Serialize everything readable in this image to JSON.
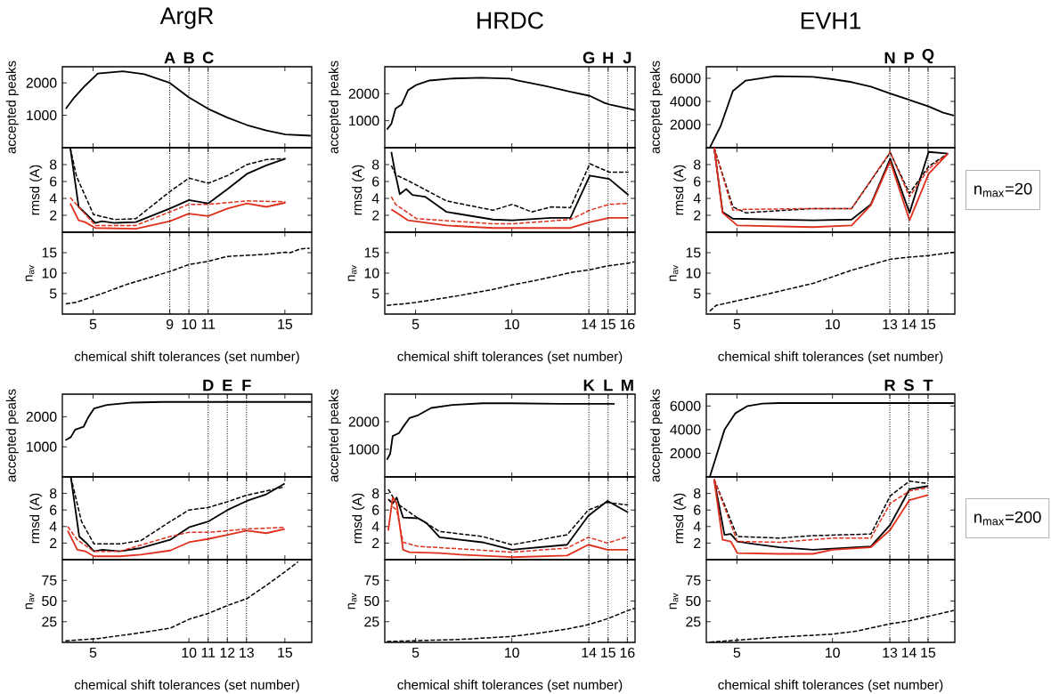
{
  "chart_data": [
    {
      "type": "line",
      "title": "ArgR",
      "ylabel": "accepted peaks",
      "xlim": [
        3.4,
        16.4
      ],
      "ylim": [
        0,
        2500
      ],
      "xticks": [
        5,
        9,
        10,
        11,
        15
      ],
      "yticks": [
        1000,
        2000
      ],
      "tick_labels": "y",
      "ref_lines": [
        {
          "axis": "x",
          "value": 9,
          "label": "A",
          "line_style": "dotted"
        },
        {
          "axis": "x",
          "value": 10,
          "label": "B",
          "line_style": "dotted"
        },
        {
          "axis": "x",
          "value": 11,
          "label": "C",
          "line_style": "dotted"
        }
      ],
      "series": [
        {
          "color": "#000000",
          "line_style": "solid",
          "x": [
            3.58,
            4.02,
            4.58,
            5.25,
            6.56,
            7.67,
            9,
            10,
            11,
            12,
            13.02,
            14.03,
            15.03,
            16.35
          ],
          "values": [
            1200,
            1550,
            1910,
            2290,
            2360,
            2270,
            2000,
            1550,
            1200,
            930,
            700,
            530,
            410,
            370
          ]
        }
      ]
    },
    {
      "type": "line",
      "ylabel": "rmsd (A)",
      "xlim": [
        3.4,
        16.4
      ],
      "ylim": [
        0,
        10
      ],
      "xticks": [
        5,
        9,
        10,
        11,
        15
      ],
      "yticks": [
        2,
        4,
        6,
        8
      ],
      "tick_labels": "y",
      "ref_lines": [
        {
          "axis": "x",
          "value": 9,
          "line_style": "dotted"
        },
        {
          "axis": "x",
          "value": 10,
          "line_style": "dotted"
        },
        {
          "axis": "x",
          "value": 11,
          "line_style": "dotted"
        }
      ],
      "series": [
        {
          "color": "#000000",
          "line_style": "solid",
          "x": [
            3.81,
            4.25,
            4.58,
            5.12,
            5.46,
            6.12,
            7.23,
            9,
            10,
            11,
            12.01,
            13.02,
            14.03,
            15.03
          ],
          "values": [
            10,
            3.0,
            2.3,
            1.1,
            1.3,
            1.1,
            1.2,
            2.8,
            3.8,
            3.4,
            5.1,
            6.9,
            7.9,
            8.7
          ]
        },
        {
          "color": "#000000",
          "line_style": "dashed",
          "x": [
            3.81,
            4.14,
            5.02,
            6.12,
            7.23,
            9,
            10,
            11.01,
            12.01,
            13.02,
            14.03,
            15.03
          ],
          "values": [
            10,
            6.6,
            2.1,
            1.5,
            1.6,
            4.8,
            6.4,
            5.8,
            6.7,
            8.0,
            8.6,
            8.7
          ]
        },
        {
          "color": "#e0301e",
          "line_style": "solid",
          "x": [
            3.81,
            4.25,
            4.58,
            5.12,
            7.23,
            9,
            10,
            11,
            12.01,
            13.02,
            14.03,
            15.03
          ],
          "values": [
            3.4,
            1.4,
            1.2,
            0.5,
            0.4,
            1.3,
            2.2,
            1.9,
            2.8,
            3.4,
            3.0,
            3.5
          ]
        },
        {
          "color": "#e0301e",
          "line_style": "dashed",
          "x": [
            3.81,
            4.25,
            5.12,
            7.23,
            9,
            10,
            11,
            13.02,
            15.03
          ],
          "values": [
            4.1,
            3.0,
            0.8,
            0.8,
            2.4,
            3.3,
            3.3,
            3.7,
            3.6
          ]
        }
      ]
    },
    {
      "type": "line",
      "ylabel": "n$_{av}$",
      "xlabel": "chemical shift tolerances (set number)",
      "xlim": [
        3.4,
        16.4
      ],
      "ylim": [
        0,
        20
      ],
      "xticks": [
        5,
        9,
        10,
        11,
        15
      ],
      "yticks": [
        5,
        10,
        15
      ],
      "ref_lines": [
        {
          "axis": "x",
          "value": 9,
          "line_style": "dotted"
        },
        {
          "axis": "x",
          "value": 10,
          "line_style": "dotted"
        },
        {
          "axis": "x",
          "value": 11,
          "line_style": "dotted"
        }
      ],
      "series": [
        {
          "color": "#000000",
          "line_style": "dashed",
          "x": [
            3.58,
            4.14,
            5.46,
            6.79,
            9,
            10,
            11.01,
            12.01,
            14.03,
            15.03,
            15.28,
            15.79,
            16.29
          ],
          "values": [
            2.5,
            2.9,
            5.0,
            7.3,
            10.4,
            12.1,
            12.9,
            14.1,
            14.6,
            15.1,
            15.0,
            15.9,
            16.1
          ]
        }
      ]
    },
    {
      "type": "line",
      "title": "HRDC",
      "ylabel": "accepted peaks",
      "xlim": [
        3.4,
        16.4
      ],
      "ylim": [
        0,
        3000
      ],
      "xticks": [
        5,
        10,
        14,
        15,
        16
      ],
      "yticks": [
        1000,
        2000
      ],
      "tick_labels": "y",
      "ref_lines": [
        {
          "axis": "x",
          "value": 14,
          "label": "G",
          "line_style": "dotted"
        },
        {
          "axis": "x",
          "value": 15,
          "label": "H",
          "line_style": "dotted"
        },
        {
          "axis": "x",
          "value": 16,
          "label": "J",
          "line_style": "dotted"
        }
      ],
      "series": [
        {
          "color": "#000000",
          "line_style": "solid",
          "x": [
            3.51,
            3.74,
            3.96,
            4.28,
            4.61,
            5.05,
            5.72,
            6.82,
            8.37,
            9.9,
            10.28,
            11.79,
            13.04,
            14.05,
            14.81,
            15.06,
            16.38
          ],
          "values": [
            670,
            880,
            1450,
            1600,
            2130,
            2330,
            2490,
            2560,
            2590,
            2560,
            2490,
            2280,
            2070,
            1920,
            1660,
            1600,
            1400
          ]
        }
      ]
    },
    {
      "type": "line",
      "ylabel": "rmsd (A)",
      "xlim": [
        3.4,
        16.4
      ],
      "ylim": [
        0,
        10
      ],
      "xticks": [
        5,
        10,
        14,
        15,
        16
      ],
      "yticks": [
        2,
        4,
        6,
        8
      ],
      "tick_labels": "y",
      "ref_lines": [
        {
          "axis": "x",
          "value": 14,
          "line_style": "dotted"
        },
        {
          "axis": "x",
          "value": 15,
          "line_style": "dotted"
        },
        {
          "axis": "x",
          "value": 16,
          "line_style": "dotted"
        }
      ],
      "series": [
        {
          "color": "#000000",
          "line_style": "solid",
          "x": [
            3.74,
            3.96,
            4.18,
            4.51,
            4.84,
            5.49,
            6.61,
            9.02,
            10.03,
            12.04,
            13.04,
            14.05,
            15.06,
            16.06
          ],
          "values": [
            9.5,
            6.8,
            4.5,
            5.1,
            4.4,
            4.2,
            2.4,
            1.5,
            1.4,
            1.7,
            1.7,
            6.7,
            6.3,
            4.4
          ]
        },
        {
          "color": "#000000",
          "line_style": "dashed",
          "x": [
            3.74,
            3.96,
            4.61,
            6.61,
            9.02,
            10.03,
            11.03,
            12.04,
            13.04,
            14.05,
            15.06,
            16.06
          ],
          "values": [
            7.9,
            6.8,
            6.1,
            3.7,
            2.6,
            3.3,
            2.4,
            3.0,
            2.9,
            8.1,
            7.1,
            7.1
          ]
        },
        {
          "color": "#e0301e",
          "line_style": "solid",
          "x": [
            3.74,
            3.96,
            4.61,
            6.61,
            9.02,
            13.04,
            14.05,
            15.06,
            16.06
          ],
          "values": [
            2.7,
            2.4,
            1.4,
            0.8,
            0.5,
            0.5,
            1.2,
            1.7,
            1.7
          ]
        },
        {
          "color": "#e0301e",
          "line_style": "dashed",
          "x": [
            3.74,
            3.96,
            5.05,
            9.02,
            10.03,
            13.04,
            14.05,
            15.06,
            16.06
          ],
          "values": [
            4.2,
            3.3,
            1.6,
            1.0,
            1.0,
            1.5,
            2.6,
            3.3,
            3.4
          ]
        }
      ]
    },
    {
      "type": "line",
      "ylabel": "n$_{av}$",
      "xlabel": "chemical shift tolerances (set number)",
      "xlim": [
        3.4,
        16.4
      ],
      "ylim": [
        0,
        20
      ],
      "xticks": [
        5,
        10,
        14,
        15,
        16
      ],
      "yticks": [
        5,
        10,
        15
      ],
      "ref_lines": [
        {
          "axis": "x",
          "value": 14,
          "line_style": "dotted"
        },
        {
          "axis": "x",
          "value": 15,
          "line_style": "dotted"
        },
        {
          "axis": "x",
          "value": 16,
          "line_style": "dotted"
        }
      ],
      "series": [
        {
          "color": "#000000",
          "line_style": "dashed",
          "x": [
            3.51,
            4.96,
            7.25,
            9,
            10,
            11,
            12,
            13,
            14,
            15,
            16,
            16.38
          ],
          "values": [
            2.1,
            2.8,
            4.5,
            6.0,
            7.1,
            8.0,
            9.0,
            10.1,
            10.8,
            11.8,
            12.4,
            12.8
          ]
        }
      ]
    },
    {
      "type": "line",
      "title": "EVH1",
      "ylabel": "accepted peaks",
      "xlim": [
        3.4,
        16.4
      ],
      "ylim": [
        0,
        7000
      ],
      "xticks": [
        5,
        10,
        13,
        14,
        15
      ],
      "yticks": [
        2000,
        4000,
        6000
      ],
      "tick_labels": "y",
      "ref_lines": [
        {
          "axis": "x",
          "value": 13,
          "label": "N",
          "line_style": "dotted"
        },
        {
          "axis": "x",
          "value": 14,
          "label": "P",
          "line_style": "dotted"
        },
        {
          "axis": "x",
          "value": 15,
          "label": "Q",
          "line_style": "dotted"
        }
      ],
      "series": [
        {
          "color": "#000000",
          "line_style": "solid",
          "x": [
            3.58,
            4.14,
            4.79,
            5.46,
            7.0,
            8.98,
            10,
            11,
            12.01,
            13.02,
            14.03,
            15.03,
            15.79,
            16.35
          ],
          "values": [
            0,
            1830,
            4900,
            5800,
            6180,
            6130,
            5920,
            5670,
            5280,
            4690,
            4130,
            3570,
            3030,
            2770
          ]
        }
      ]
    },
    {
      "type": "line",
      "ylabel": "rmsd (A)",
      "xlim": [
        3.4,
        16.4
      ],
      "ylim": [
        0,
        10
      ],
      "xticks": [
        5,
        10,
        13,
        14,
        15
      ],
      "yticks": [
        2,
        4,
        6,
        8
      ],
      "tick_labels": "y",
      "annotations": [
        "n$_{max}$=20"
      ],
      "ref_lines": [
        {
          "axis": "x",
          "value": 13,
          "line_style": "dotted"
        },
        {
          "axis": "x",
          "value": 14,
          "line_style": "dotted"
        },
        {
          "axis": "x",
          "value": 15,
          "line_style": "dotted"
        }
      ],
      "series": [
        {
          "color": "#000000",
          "line_style": "solid",
          "x": [
            3.81,
            4.25,
            4.79,
            8.98,
            11,
            12.01,
            13.02,
            14.03,
            15.03,
            16.04
          ],
          "values": [
            10,
            2.4,
            1.6,
            1.4,
            1.5,
            3.3,
            8.7,
            2.3,
            9.5,
            9.3
          ]
        },
        {
          "color": "#000000",
          "line_style": "dashed",
          "x": [
            3.81,
            4.79,
            5.46,
            8.98,
            11,
            13.02,
            14.03,
            15.03,
            16.04
          ],
          "values": [
            10,
            3.0,
            2.3,
            2.8,
            2.8,
            9.4,
            4.6,
            7.8,
            9.3
          ]
        },
        {
          "color": "#e0301e",
          "line_style": "solid",
          "x": [
            3.81,
            4.25,
            5.02,
            8.98,
            11,
            12.01,
            13.02,
            14.03,
            15.03,
            16.04
          ],
          "values": [
            10,
            2.3,
            0.8,
            0.6,
            0.8,
            3.2,
            8.4,
            1.4,
            6.9,
            9.3
          ]
        },
        {
          "color": "#e0301e",
          "line_style": "dashed",
          "x": [
            3.81,
            4.79,
            5.46,
            8.98,
            11,
            13.02,
            14.03,
            15.03,
            16.04
          ],
          "values": [
            10,
            2.6,
            2.7,
            2.8,
            2.8,
            9.5,
            4.2,
            7.5,
            9.3
          ]
        }
      ]
    },
    {
      "type": "line",
      "ylabel": "n$_{av}$",
      "xlabel": "chemical shift tolerances (set number)",
      "xlim": [
        3.4,
        16.4
      ],
      "ylim": [
        0,
        20
      ],
      "xticks": [
        5,
        10,
        13,
        14,
        15
      ],
      "yticks": [
        5,
        10,
        15
      ],
      "ref_lines": [
        {
          "axis": "x",
          "value": 13,
          "line_style": "dotted"
        },
        {
          "axis": "x",
          "value": 14,
          "line_style": "dotted"
        },
        {
          "axis": "x",
          "value": 15,
          "line_style": "dotted"
        }
      ],
      "series": [
        {
          "color": "#000000",
          "line_style": "dashed",
          "x": [
            3.58,
            3.91,
            6.33,
            8.98,
            11,
            13.02,
            14.03,
            15.03,
            16.35
          ],
          "values": [
            0.7,
            2.1,
            4.6,
            7.5,
            10.7,
            13.4,
            13.9,
            14.3,
            15.1
          ]
        }
      ]
    },
    {
      "type": "line",
      "ylabel": "accepted peaks",
      "xlim": [
        3.4,
        16.4
      ],
      "ylim": [
        0,
        2750
      ],
      "xticks": [
        5,
        10,
        11,
        12,
        13,
        15
      ],
      "yticks": [
        1000,
        2000
      ],
      "tick_labels": "y",
      "ref_lines": [
        {
          "axis": "x",
          "value": 11,
          "label": "D",
          "line_style": "dotted"
        },
        {
          "axis": "x",
          "value": 12,
          "label": "E",
          "line_style": "dotted"
        },
        {
          "axis": "x",
          "value": 13,
          "label": "F",
          "line_style": "dotted"
        }
      ],
      "series": [
        {
          "color": "#000000",
          "line_style": "solid",
          "x": [
            3.56,
            3.84,
            4.07,
            4.51,
            4.74,
            5.05,
            5.72,
            7.05,
            8.6,
            16.38
          ],
          "values": [
            1220,
            1320,
            1570,
            1670,
            1970,
            2270,
            2390,
            2470,
            2490,
            2490
          ]
        }
      ]
    },
    {
      "type": "line",
      "ylabel": "rmsd (A)",
      "xlim": [
        3.4,
        16.4
      ],
      "ylim": [
        0,
        10
      ],
      "xticks": [
        5,
        10,
        11,
        12,
        13,
        15
      ],
      "yticks": [
        2,
        4,
        6,
        8
      ],
      "tick_labels": "y",
      "ref_lines": [
        {
          "axis": "x",
          "value": 11,
          "line_style": "dotted"
        },
        {
          "axis": "x",
          "value": 12,
          "line_style": "dotted"
        },
        {
          "axis": "x",
          "value": 13,
          "line_style": "dotted"
        }
      ],
      "series": [
        {
          "color": "#000000",
          "line_style": "solid",
          "x": [
            3.84,
            4.28,
            4.61,
            5.05,
            5.49,
            6.39,
            7.49,
            9.02,
            10,
            11,
            12.01,
            13.02,
            14.03,
            14.99
          ],
          "values": [
            10,
            2.8,
            2.1,
            1.0,
            1.2,
            1.0,
            1.4,
            2.4,
            3.9,
            4.6,
            6.0,
            7.1,
            7.9,
            9.2
          ]
        },
        {
          "color": "#000000",
          "line_style": "dashed",
          "x": [
            3.84,
            4.4,
            5.05,
            6.39,
            7.49,
            9.02,
            10,
            11,
            12.01,
            13.02,
            14.03,
            14.99
          ],
          "values": [
            10,
            4.6,
            1.9,
            1.9,
            2.3,
            4.6,
            6.0,
            6.3,
            7.0,
            7.8,
            8.3,
            8.8
          ]
        },
        {
          "color": "#e0301e",
          "line_style": "solid",
          "x": [
            3.68,
            4.18,
            4.61,
            5.05,
            6.39,
            7.49,
            9.02,
            10,
            11,
            12.01,
            13.02,
            14.03,
            14.99
          ],
          "values": [
            3.5,
            1.2,
            1.0,
            0.4,
            0.4,
            0.6,
            1.1,
            2.1,
            2.5,
            3.0,
            3.5,
            3.2,
            3.7
          ]
        },
        {
          "color": "#e0301e",
          "line_style": "dashed",
          "x": [
            3.68,
            4.18,
            5.05,
            6.39,
            9.02,
            10,
            11,
            13.02,
            14.99
          ],
          "values": [
            4.0,
            2.4,
            1.0,
            1.0,
            2.8,
            3.3,
            3.3,
            3.7,
            3.9
          ]
        }
      ]
    },
    {
      "type": "line",
      "ylabel": "n$_{av}$",
      "xlabel": "chemical shift tolerances (set number)",
      "xlim": [
        3.4,
        16.4
      ],
      "ylim": [
        0,
        100
      ],
      "xticks": [
        5,
        10,
        11,
        12,
        13,
        15
      ],
      "yticks": [
        25,
        50,
        75
      ],
      "ref_lines": [
        {
          "axis": "x",
          "value": 11,
          "line_style": "dotted"
        },
        {
          "axis": "x",
          "value": 12,
          "line_style": "dotted"
        },
        {
          "axis": "x",
          "value": 13,
          "line_style": "dotted"
        }
      ],
      "series": [
        {
          "color": "#000000",
          "line_style": "dashed",
          "x": [
            3.56,
            5.28,
            7.49,
            9.02,
            10,
            11,
            12.01,
            13.02,
            14.03,
            14.99,
            15.69
          ],
          "values": [
            1.8,
            4.6,
            11.8,
            17.1,
            27.9,
            35,
            44.6,
            52.9,
            68.9,
            85,
            97.5
          ]
        }
      ]
    },
    {
      "type": "line",
      "ylabel": "accepted peaks",
      "xlim": [
        3.4,
        16.4
      ],
      "ylim": [
        0,
        3000
      ],
      "xticks": [
        5,
        10,
        14,
        15,
        16
      ],
      "yticks": [
        1000,
        2000
      ],
      "tick_labels": "y",
      "ref_lines": [
        {
          "axis": "x",
          "value": 14,
          "label": "K",
          "line_style": "dotted"
        },
        {
          "axis": "x",
          "value": 15,
          "label": "L",
          "line_style": "dotted"
        },
        {
          "axis": "x",
          "value": 16,
          "label": "M",
          "line_style": "dotted"
        }
      ],
      "series": [
        {
          "color": "#000000",
          "line_style": "solid",
          "x": [
            3.51,
            3.68,
            3.81,
            4.14,
            4.35,
            4.68,
            5.14,
            5.81,
            6.91,
            8.47,
            9.96,
            12.49,
            15.34
          ],
          "values": [
            620,
            840,
            1480,
            1590,
            1810,
            2130,
            2240,
            2500,
            2610,
            2670,
            2670,
            2650,
            2650
          ]
        }
      ]
    },
    {
      "type": "line",
      "ylabel": "rmsd (A)",
      "xlim": [
        3.4,
        16.4
      ],
      "ylim": [
        0,
        10
      ],
      "xticks": [
        5,
        10,
        14,
        15,
        16
      ],
      "yticks": [
        2,
        4,
        6,
        8
      ],
      "tick_labels": "y",
      "ref_lines": [
        {
          "axis": "x",
          "value": 14,
          "line_style": "dotted"
        },
        {
          "axis": "x",
          "value": 15,
          "line_style": "dotted"
        },
        {
          "axis": "x",
          "value": 16,
          "line_style": "dotted"
        }
      ],
      "series": [
        {
          "color": "#000000",
          "line_style": "solid",
          "x": [
            3.58,
            3.81,
            4.02,
            4.35,
            5.14,
            5.58,
            6.25,
            8.47,
            10,
            12.87,
            13.97,
            14.97,
            16.04
          ],
          "values": [
            7.3,
            6.8,
            7.5,
            5.1,
            5.0,
            4.4,
            2.7,
            2.1,
            1.2,
            1.8,
            5.3,
            7.1,
            5.7
          ]
        },
        {
          "color": "#000000",
          "line_style": "dashed",
          "x": [
            3.58,
            4.02,
            5.14,
            6.25,
            8.47,
            10,
            12.87,
            13.97,
            14.97,
            16.04
          ],
          "values": [
            8.5,
            6.8,
            5.0,
            3.4,
            2.8,
            1.8,
            3.0,
            6.0,
            6.9,
            6.6
          ]
        },
        {
          "color": "#e0301e",
          "line_style": "solid",
          "x": [
            3.58,
            3.81,
            4.02,
            4.35,
            4.68,
            6.25,
            7.35,
            10,
            12.87,
            13.97,
            14.97,
            16.04
          ],
          "values": [
            3.5,
            7.5,
            6.8,
            1.2,
            0.9,
            0.8,
            0.6,
            0.3,
            0.5,
            1.8,
            1.2,
            1.2
          ]
        },
        {
          "color": "#e0301e",
          "line_style": "dashed",
          "x": [
            3.81,
            4.02,
            4.35,
            5.14,
            7.35,
            10,
            12.87,
            13.97,
            14.97,
            16.04
          ],
          "values": [
            6.4,
            6.0,
            2.1,
            1.6,
            1.3,
            0.9,
            1.4,
            2.7,
            2.0,
            2.8
          ]
        }
      ]
    },
    {
      "type": "line",
      "ylabel": "n$_{av}$",
      "xlabel": "chemical shift tolerances (set number)",
      "xlim": [
        3.4,
        16.4
      ],
      "ylim": [
        0,
        100
      ],
      "xticks": [
        5,
        10,
        14,
        15,
        16
      ],
      "yticks": [
        25,
        50,
        75
      ],
      "ref_lines": [
        {
          "axis": "x",
          "value": 14,
          "line_style": "dotted"
        },
        {
          "axis": "x",
          "value": 15,
          "line_style": "dotted"
        },
        {
          "axis": "x",
          "value": 16,
          "line_style": "dotted"
        }
      ],
      "series": [
        {
          "color": "#000000",
          "line_style": "dashed",
          "x": [
            3.51,
            7.35,
            10,
            11.23,
            12.87,
            13.97,
            14.97,
            16.04,
            16.39
          ],
          "values": [
            1.1,
            3.6,
            7.2,
            10.7,
            16.1,
            21.4,
            28.6,
            38.6,
            41.1
          ]
        }
      ]
    },
    {
      "type": "line",
      "ylabel": "accepted peaks",
      "xlim": [
        3.4,
        16.4
      ],
      "ylim": [
        0,
        7000
      ],
      "xticks": [
        5,
        10,
        13,
        14,
        15
      ],
      "yticks": [
        2000,
        4000,
        6000
      ],
      "tick_labels": "y",
      "ref_lines": [
        {
          "axis": "x",
          "value": 13,
          "label": "R",
          "line_style": "dotted"
        },
        {
          "axis": "x",
          "value": 14,
          "label": "S",
          "line_style": "dotted"
        },
        {
          "axis": "x",
          "value": 15,
          "label": "T",
          "line_style": "dotted"
        }
      ],
      "series": [
        {
          "color": "#000000",
          "line_style": "solid",
          "x": [
            3.58,
            3.91,
            4.35,
            4.91,
            5.56,
            6.33,
            7.23,
            16.35
          ],
          "values": [
            0,
            1700,
            3980,
            5370,
            6000,
            6200,
            6250,
            6250
          ]
        }
      ]
    },
    {
      "type": "line",
      "ylabel": "rmsd (A)",
      "xlim": [
        3.4,
        16.4
      ],
      "ylim": [
        0,
        10
      ],
      "xticks": [
        5,
        10,
        13,
        14,
        15
      ],
      "yticks": [
        2,
        4,
        6,
        8
      ],
      "tick_labels": "y",
      "annotations": [
        "n$_{max}$=200"
      ],
      "ref_lines": [
        {
          "axis": "x",
          "value": 13,
          "line_style": "dotted"
        },
        {
          "axis": "x",
          "value": 14,
          "line_style": "dotted"
        },
        {
          "axis": "x",
          "value": 15,
          "line_style": "dotted"
        }
      ],
      "series": [
        {
          "color": "#000000",
          "line_style": "solid",
          "x": [
            3.81,
            4.35,
            4.68,
            5.02,
            5.89,
            7.23,
            8.98,
            12.01,
            13.02,
            14.03,
            15
          ],
          "values": [
            9.7,
            3.0,
            3.1,
            2.2,
            1.9,
            1.5,
            1.2,
            1.6,
            4.2,
            8.5,
            8.9
          ]
        },
        {
          "color": "#000000",
          "line_style": "dashed",
          "x": [
            3.81,
            5.02,
            7.23,
            8.98,
            12.01,
            13.02,
            14.03,
            15
          ],
          "values": [
            9.7,
            2.8,
            2.6,
            2.9,
            3.1,
            7.7,
            9.5,
            9.2
          ]
        },
        {
          "color": "#e0301e",
          "line_style": "solid",
          "x": [
            3.81,
            4.25,
            4.68,
            5.02,
            7.23,
            8.98,
            10,
            12.01,
            13.02,
            14.03,
            15
          ],
          "values": [
            9.7,
            2.4,
            2.2,
            0.8,
            0.7,
            0.7,
            1.2,
            1.5,
            3.6,
            7.2,
            7.8
          ]
        },
        {
          "color": "#e0301e",
          "line_style": "dashed",
          "x": [
            3.81,
            5.02,
            7.23,
            10,
            12.01,
            13.02,
            14.03,
            15
          ],
          "values": [
            9.7,
            2.2,
            2.1,
            2.6,
            2.6,
            6.8,
            8.3,
            8.7
          ]
        }
      ]
    },
    {
      "type": "line",
      "ylabel": "n$_{av}$",
      "xlabel": "chemical shift tolerances (set number)",
      "xlim": [
        3.4,
        16.4
      ],
      "ylim": [
        0,
        100
      ],
      "xticks": [
        5,
        10,
        13,
        14,
        15
      ],
      "yticks": [
        25,
        50,
        75
      ],
      "ref_lines": [
        {
          "axis": "x",
          "value": 13,
          "line_style": "dotted"
        },
        {
          "axis": "x",
          "value": 14,
          "line_style": "dotted"
        },
        {
          "axis": "x",
          "value": 15,
          "line_style": "dotted"
        }
      ],
      "series": [
        {
          "color": "#000000",
          "line_style": "dashed",
          "x": [
            3.58,
            7.23,
            10,
            11.26,
            13.02,
            14.03,
            15,
            16.35
          ],
          "values": [
            0.4,
            6.4,
            10,
            13.6,
            22.5,
            26.1,
            31.4,
            38.6
          ]
        }
      ]
    }
  ]
}
